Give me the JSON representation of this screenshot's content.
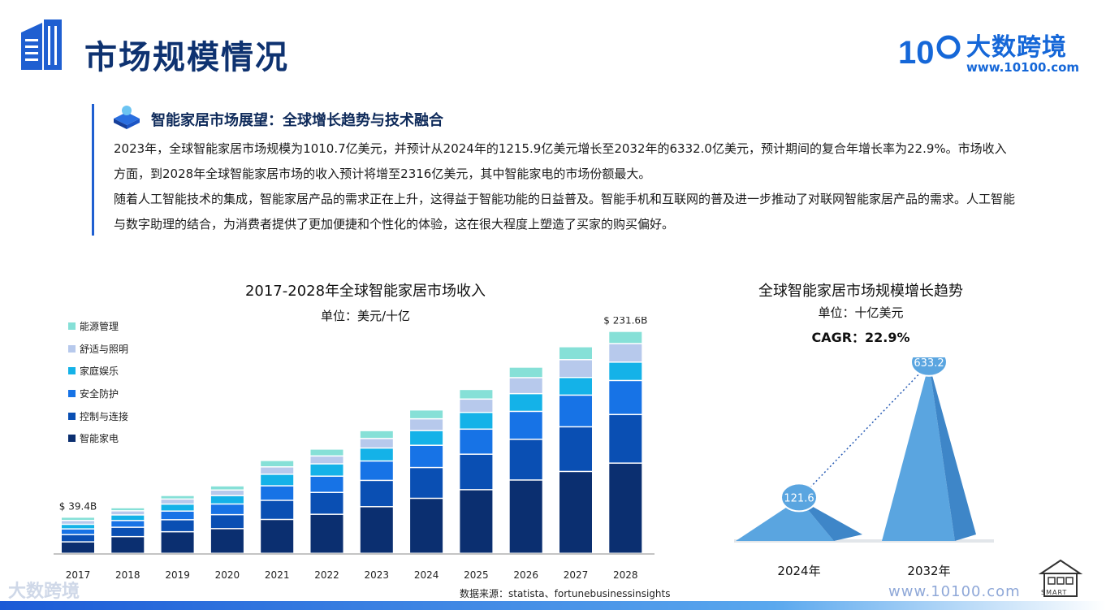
{
  "header": {
    "title": "市场规模情况",
    "brand_name": "大数跨境",
    "brand_url": "www.10100.com",
    "logo_mark": "10"
  },
  "section": {
    "heading": "智能家居市场展望：全球增长趋势与技术融合",
    "paragraph1": "2023年，全球智能家居市场规模为1010.7亿美元，并预计从2024年的1215.9亿美元增长至2032年的6332.0亿美元，预计期间的复合年增长率为22.9%。市场收入方面，到2028年全球智能家居市场的收入预计将增至2316亿美元，其中智能家电的市场份额最大。",
    "paragraph2": "随着人工智能技术的集成，智能家居产品的需求正在上升，这得益于智能功能的日益普及。智能手机和互联网的普及进一步推动了对联网智能家居产品的需求。人工智能与数字助理的结合，为消费者提供了更加便捷和个性化的体验，这在很大程度上塑造了买家的购买偏好。"
  },
  "chart_data": [
    {
      "type": "bar",
      "stacked": true,
      "title": "2017-2028年全球智能家居市场收入",
      "subtitle": "单位：美元/十亿",
      "categories": [
        "2017",
        "2018",
        "2019",
        "2020",
        "2021",
        "2022",
        "2023",
        "2024",
        "2025",
        "2026",
        "2027",
        "2028"
      ],
      "series": [
        {
          "name": "智能家电",
          "color": "#0b2f70",
          "values": [
            12.5,
            18.2,
            23.5,
            26.9,
            36.9,
            42.5,
            50.8,
            59.9,
            69.3,
            79.8,
            89.1,
            98.2
          ]
        },
        {
          "name": "控制与连接",
          "color": "#0a4fb3",
          "values": [
            7.9,
            10.2,
            13.1,
            15.2,
            20.8,
            23.8,
            28.6,
            33.5,
            38.6,
            44.3,
            48.6,
            52.9
          ]
        },
        {
          "name": "安全防护",
          "color": "#1773e6",
          "values": [
            6.2,
            7.3,
            9.4,
            11.6,
            15.8,
            17.7,
            21.1,
            24.2,
            27.3,
            30.4,
            34.5,
            37.0
          ]
        },
        {
          "name": "家庭娱乐",
          "color": "#14b2e8",
          "values": [
            5.0,
            6.1,
            7.6,
            9.1,
            12.6,
            13.4,
            14.1,
            16.0,
            18.2,
            19.3,
            19.2,
            20.0
          ]
        },
        {
          "name": "舒适与照明",
          "color": "#b7c9ec",
          "values": [
            4.2,
            4.5,
            5.5,
            6.1,
            8.0,
            8.6,
            10.4,
            12.8,
            14.5,
            17.4,
            19.4,
            20.2
          ]
        },
        {
          "name": "能源管理",
          "color": "#86e0d7",
          "values": [
            3.6,
            3.4,
            3.9,
            4.6,
            7.0,
            7.5,
            8.6,
            9.7,
            10.5,
            11.5,
            14.1,
            13.3
          ]
        }
      ],
      "data_labels": [
        {
          "category": "2017",
          "text": "$ 39.4B"
        },
        {
          "category": "2028",
          "text": "$ 231.6B"
        }
      ],
      "ylim": [
        0,
        231.6
      ],
      "legend": "left",
      "source": "数据来源：statista、fortunebusinessinsights"
    },
    {
      "type": "area",
      "title": "全球智能家居市场规模增长趋势",
      "subtitle": "单位：十亿美元",
      "cagr": "CAGR：22.9%",
      "categories": [
        "2024年",
        "2032年"
      ],
      "values": [
        121.6,
        633.2
      ],
      "value_labels": [
        "121.6",
        "633.2"
      ],
      "color": "#5aa5e0",
      "ylim": [
        0,
        700
      ]
    }
  ],
  "footer": {
    "brand": "大数跨境",
    "url": "www.10100.com",
    "smart_label": "SMART"
  }
}
